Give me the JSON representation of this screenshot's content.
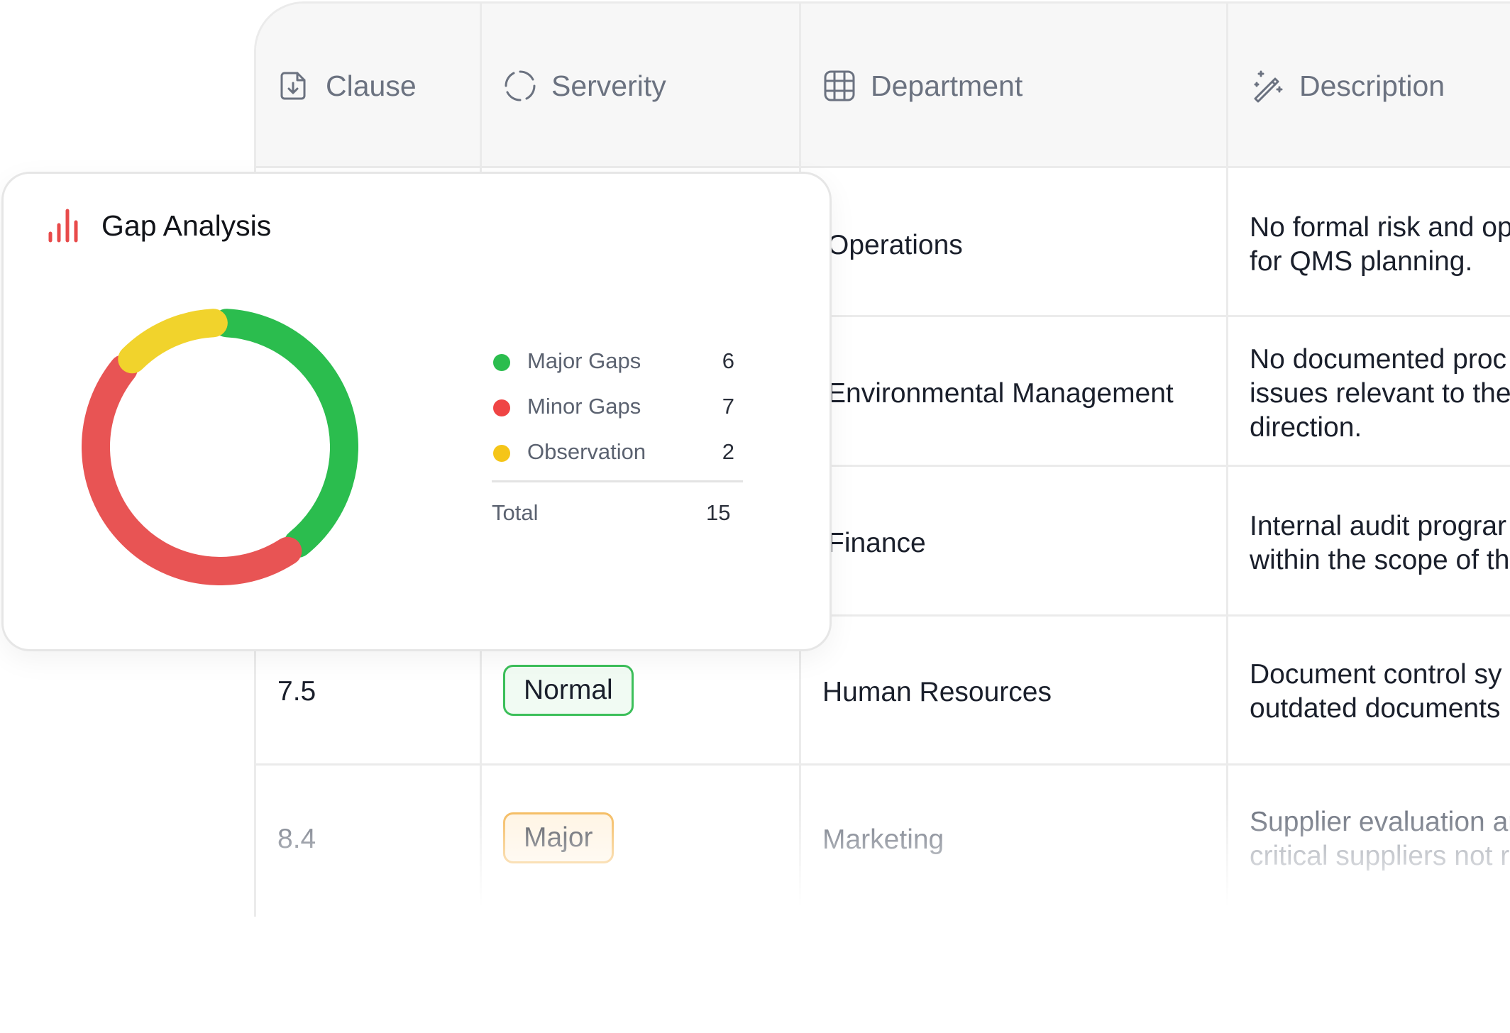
{
  "table": {
    "headers": [
      {
        "label": "Clause",
        "icon": "document-download-icon"
      },
      {
        "label": "Serverity",
        "icon": "spinner-circle-icon"
      },
      {
        "label": "Department",
        "icon": "grid-icon"
      },
      {
        "label": "Description",
        "icon": "magic-wand-icon"
      }
    ],
    "rows": [
      {
        "clause": "",
        "severity": "",
        "department": "Operations",
        "description": [
          "No formal risk and op",
          "for QMS planning."
        ]
      },
      {
        "clause": "",
        "severity": "",
        "department": "Environmental Management",
        "description": [
          "No documented proc",
          "issues relevant to the",
          "direction."
        ]
      },
      {
        "clause": "",
        "severity": "",
        "department": "Finance",
        "description": [
          "Internal audit prograr",
          "within the scope of th"
        ]
      },
      {
        "clause": "7.5",
        "severity": "Normal",
        "department": "Human Resources",
        "description": [
          "Document control sy",
          "outdated documents"
        ]
      },
      {
        "clause": "8.4",
        "severity": "Major",
        "department": "Marketing",
        "description": [
          "Supplier evaluation ar",
          "critical suppliers not r"
        ]
      }
    ]
  },
  "card": {
    "title": "Gap Analysis",
    "icon": "bar-chart-icon",
    "legend": [
      {
        "label": "Major Gaps",
        "value": "6",
        "color": "#2bbd4e"
      },
      {
        "label": "Minor Gaps",
        "value": "7",
        "color": "#ef4444"
      },
      {
        "label": "Observation",
        "value": "2",
        "color": "#f5c518"
      }
    ],
    "total_label": "Total",
    "total_value": "15"
  },
  "chart_data": {
    "type": "pie",
    "categories": [
      "Major Gaps",
      "Minor Gaps",
      "Observation"
    ],
    "values": [
      6,
      7,
      2
    ],
    "colors": [
      "#2bbd4e",
      "#e85454",
      "#f1d32c"
    ],
    "title": "Gap Analysis"
  }
}
